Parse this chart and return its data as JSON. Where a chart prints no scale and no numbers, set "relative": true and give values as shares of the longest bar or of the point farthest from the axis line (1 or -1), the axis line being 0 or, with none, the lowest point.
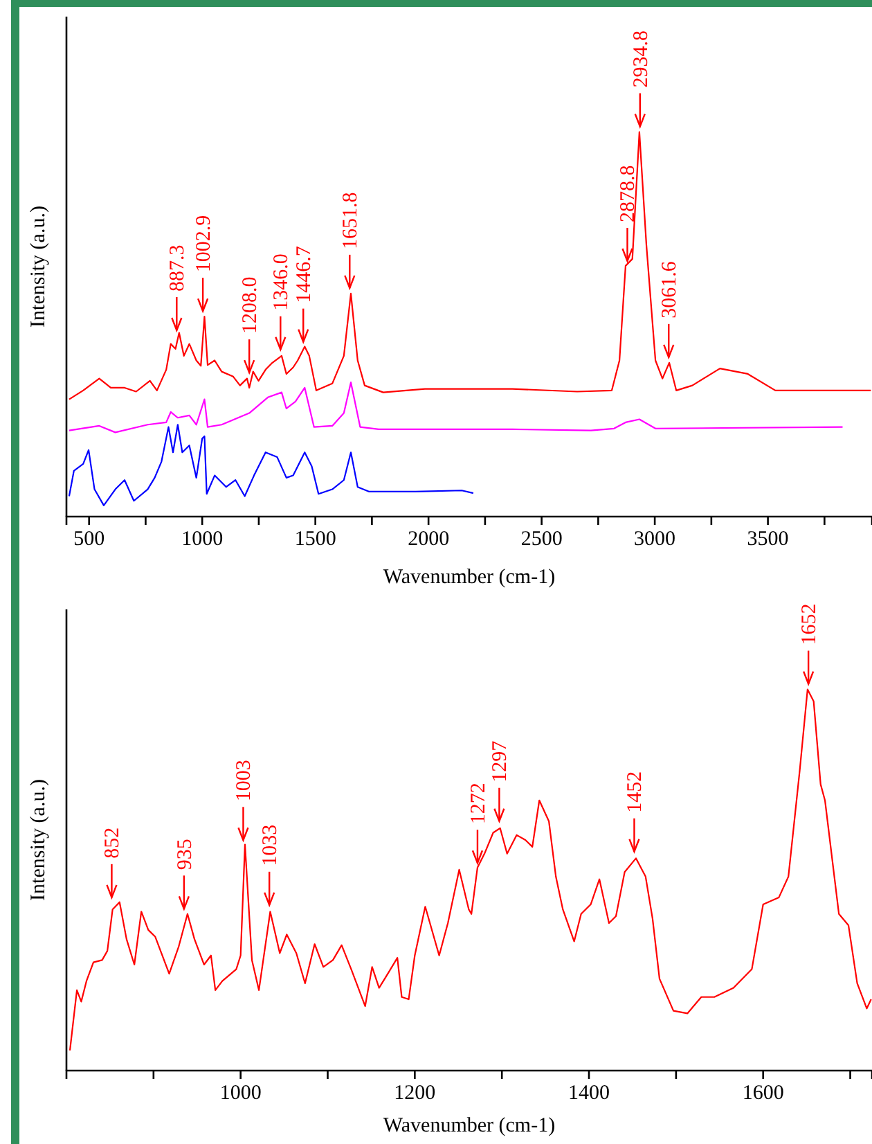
{
  "chart_data": [
    {
      "type": "line",
      "xlabel": "Wavenumber (cm-1)",
      "ylabel": "Intensity (a.u.)",
      "relative": true,
      "xlim": [
        400,
        3960
      ],
      "xticks": [
        500,
        {
          "value": 750,
          "label": null
        },
        1000,
        {
          "value": 1250,
          "label": null
        },
        1500,
        {
          "value": 1750,
          "label": null
        },
        2000,
        {
          "value": 2250,
          "label": null
        },
        2500,
        {
          "value": 2750,
          "label": null
        },
        3000,
        {
          "value": 3250,
          "label": null
        },
        3500,
        {
          "value": 3750,
          "label": null
        }
      ],
      "series": [
        {
          "color": "#ff0000",
          "x": [
            412,
            474,
            545,
            596,
            657,
            708,
            769,
            800,
            841,
            861,
            882,
            898,
            919,
            943,
            974,
            994,
            1010,
            1024,
            1055,
            1086,
            1137,
            1167,
            1198,
            1208,
            1225,
            1249,
            1280,
            1310,
            1351,
            1372,
            1402,
            1422,
            1453,
            1473,
            1504,
            1575,
            1626,
            1657,
            1687,
            1718,
            1800,
            1984,
            2371,
            2657,
            2810,
            2844,
            2871,
            2901,
            2932,
            2963,
            3003,
            3034,
            3064,
            3095,
            3166,
            3288,
            3411,
            3533,
            3737,
            3955
          ],
          "values": [
            0.305,
            0.328,
            0.359,
            0.335,
            0.335,
            0.325,
            0.353,
            0.328,
            0.382,
            0.449,
            0.436,
            0.478,
            0.418,
            0.449,
            0.406,
            0.392,
            0.52,
            0.394,
            0.406,
            0.377,
            0.364,
            0.341,
            0.359,
            0.335,
            0.377,
            0.353,
            0.382,
            0.4,
            0.418,
            0.371,
            0.388,
            0.406,
            0.442,
            0.418,
            0.328,
            0.346,
            0.418,
            0.58,
            0.406,
            0.341,
            0.323,
            0.332,
            0.332,
            0.325,
            0.328,
            0.406,
            0.652,
            0.67,
            1.0,
            0.706,
            0.406,
            0.359,
            0.4,
            0.328,
            0.341,
            0.385,
            0.371,
            0.328,
            0.328,
            0.328
          ]
        },
        {
          "color": "#ff00ff",
          "x": [
            412,
            545,
            616,
            759,
            841,
            861,
            892,
            943,
            974,
            1010,
            1024,
            1086,
            1208,
            1290,
            1351,
            1372,
            1412,
            1453,
            1494,
            1575,
            1626,
            1657,
            1698,
            1780,
            2371,
            2718,
            2820,
            2871,
            2932,
            3003,
            3830
          ],
          "values": [
            0.224,
            0.236,
            0.219,
            0.239,
            0.245,
            0.272,
            0.257,
            0.263,
            0.239,
            0.305,
            0.233,
            0.239,
            0.269,
            0.31,
            0.323,
            0.281,
            0.299,
            0.335,
            0.233,
            0.236,
            0.269,
            0.349,
            0.233,
            0.227,
            0.227,
            0.224,
            0.229,
            0.245,
            0.253,
            0.229,
            0.233
          ]
        },
        {
          "color": "#0000ff",
          "x": [
            412,
            433,
            474,
            498,
            524,
            565,
            616,
            657,
            698,
            759,
            790,
            820,
            851,
            871,
            892,
            912,
            943,
            974,
            1000,
            1010,
            1020,
            1055,
            1106,
            1147,
            1188,
            1229,
            1280,
            1331,
            1372,
            1402,
            1453,
            1484,
            1514,
            1575,
            1626,
            1657,
            1687,
            1738,
            1943,
            2147,
            2198
          ],
          "values": [
            0.053,
            0.119,
            0.137,
            0.173,
            0.071,
            0.029,
            0.071,
            0.095,
            0.041,
            0.071,
            0.101,
            0.143,
            0.233,
            0.167,
            0.239,
            0.167,
            0.185,
            0.101,
            0.203,
            0.209,
            0.059,
            0.107,
            0.077,
            0.095,
            0.053,
            0.107,
            0.167,
            0.155,
            0.101,
            0.107,
            0.167,
            0.131,
            0.059,
            0.071,
            0.095,
            0.167,
            0.077,
            0.065,
            0.065,
            0.068,
            0.061
          ]
        }
      ],
      "annotations": [
        {
          "text": "887.3",
          "x": 887.3,
          "y": 0.47
        },
        {
          "text": "1002.9",
          "x": 1002.9,
          "y": 0.52
        },
        {
          "text": "1208.0",
          "x": 1208.0,
          "y": 0.36
        },
        {
          "text": "1346.0",
          "x": 1346.0,
          "y": 0.42
        },
        {
          "text": "1446.7",
          "x": 1446.7,
          "y": 0.44
        },
        {
          "text": "1651.8",
          "x": 1651.8,
          "y": 0.58
        },
        {
          "text": "2878.8",
          "x": 2878.8,
          "y": 0.65
        },
        {
          "text": "2934.8",
          "x": 2934.8,
          "y": 1.0
        },
        {
          "text": "3061.6",
          "x": 3061.6,
          "y": 0.4
        }
      ]
    },
    {
      "type": "line",
      "xlabel": "Wavenumber (cm-1)",
      "ylabel": "Intensity (a.u.)",
      "relative": true,
      "xlim": [
        800,
        1725
      ],
      "xticks": [
        {
          "value": 900,
          "label": null
        },
        1000,
        {
          "value": 1100,
          "label": null
        },
        1200,
        {
          "value": 1300,
          "label": null
        },
        1400,
        {
          "value": 1500,
          "label": null
        },
        1600,
        {
          "value": 1700,
          "label": null
        }
      ],
      "series": [
        {
          "color": "#ff0000",
          "x": [
            804,
            812,
            817,
            823,
            831,
            841,
            847,
            853,
            861,
            869,
            878,
            886,
            894,
            902,
            918,
            929,
            939,
            947,
            958,
            966,
            971,
            979,
            995,
            1000,
            1005,
            1013,
            1021,
            1034,
            1045,
            1053,
            1064,
            1074,
            1085,
            1095,
            1106,
            1116,
            1127,
            1143,
            1151,
            1159,
            1169,
            1180,
            1185,
            1193,
            1200,
            1212,
            1228,
            1238,
            1251,
            1262,
            1265,
            1272,
            1280,
            1290,
            1298,
            1306,
            1317,
            1327,
            1335,
            1343,
            1354,
            1362,
            1370,
            1383,
            1391,
            1402,
            1412,
            1423,
            1431,
            1441,
            1454,
            1465,
            1473,
            1481,
            1497,
            1513,
            1529,
            1544,
            1566,
            1587,
            1600,
            1618,
            1629,
            1642,
            1651,
            1658,
            1666,
            1671,
            1687,
            1698,
            1708,
            1719,
            1724
          ],
          "values": [
            0.053,
            0.211,
            0.181,
            0.235,
            0.284,
            0.29,
            0.314,
            0.423,
            0.442,
            0.345,
            0.278,
            0.417,
            0.369,
            0.351,
            0.254,
            0.326,
            0.411,
            0.345,
            0.278,
            0.302,
            0.211,
            0.235,
            0.266,
            0.302,
            0.593,
            0.29,
            0.211,
            0.417,
            0.308,
            0.357,
            0.308,
            0.229,
            0.332,
            0.272,
            0.29,
            0.329,
            0.266,
            0.169,
            0.272,
            0.217,
            0.254,
            0.296,
            0.193,
            0.187,
            0.302,
            0.43,
            0.302,
            0.387,
            0.527,
            0.423,
            0.411,
            0.533,
            0.569,
            0.624,
            0.636,
            0.569,
            0.618,
            0.605,
            0.587,
            0.709,
            0.654,
            0.509,
            0.423,
            0.339,
            0.411,
            0.436,
            0.502,
            0.387,
            0.405,
            0.521,
            0.557,
            0.509,
            0.399,
            0.241,
            0.157,
            0.15,
            0.193,
            0.193,
            0.217,
            0.266,
            0.436,
            0.454,
            0.509,
            0.787,
            1.0,
            0.969,
            0.751,
            0.709,
            0.411,
            0.381,
            0.229,
            0.163,
            0.187
          ]
        }
      ],
      "annotations": [
        {
          "text": "852",
          "x": 852,
          "y": 0.44
        },
        {
          "text": "935",
          "x": 935,
          "y": 0.41
        },
        {
          "text": "1003",
          "x": 1003,
          "y": 0.59
        },
        {
          "text": "1033",
          "x": 1033,
          "y": 0.42
        },
        {
          "text": "1272",
          "x": 1272,
          "y": 0.53
        },
        {
          "text": "1297",
          "x": 1297,
          "y": 0.64
        },
        {
          "text": "1452",
          "x": 1452,
          "y": 0.56
        },
        {
          "text": "1652",
          "x": 1652,
          "y": 1.0
        }
      ]
    }
  ]
}
